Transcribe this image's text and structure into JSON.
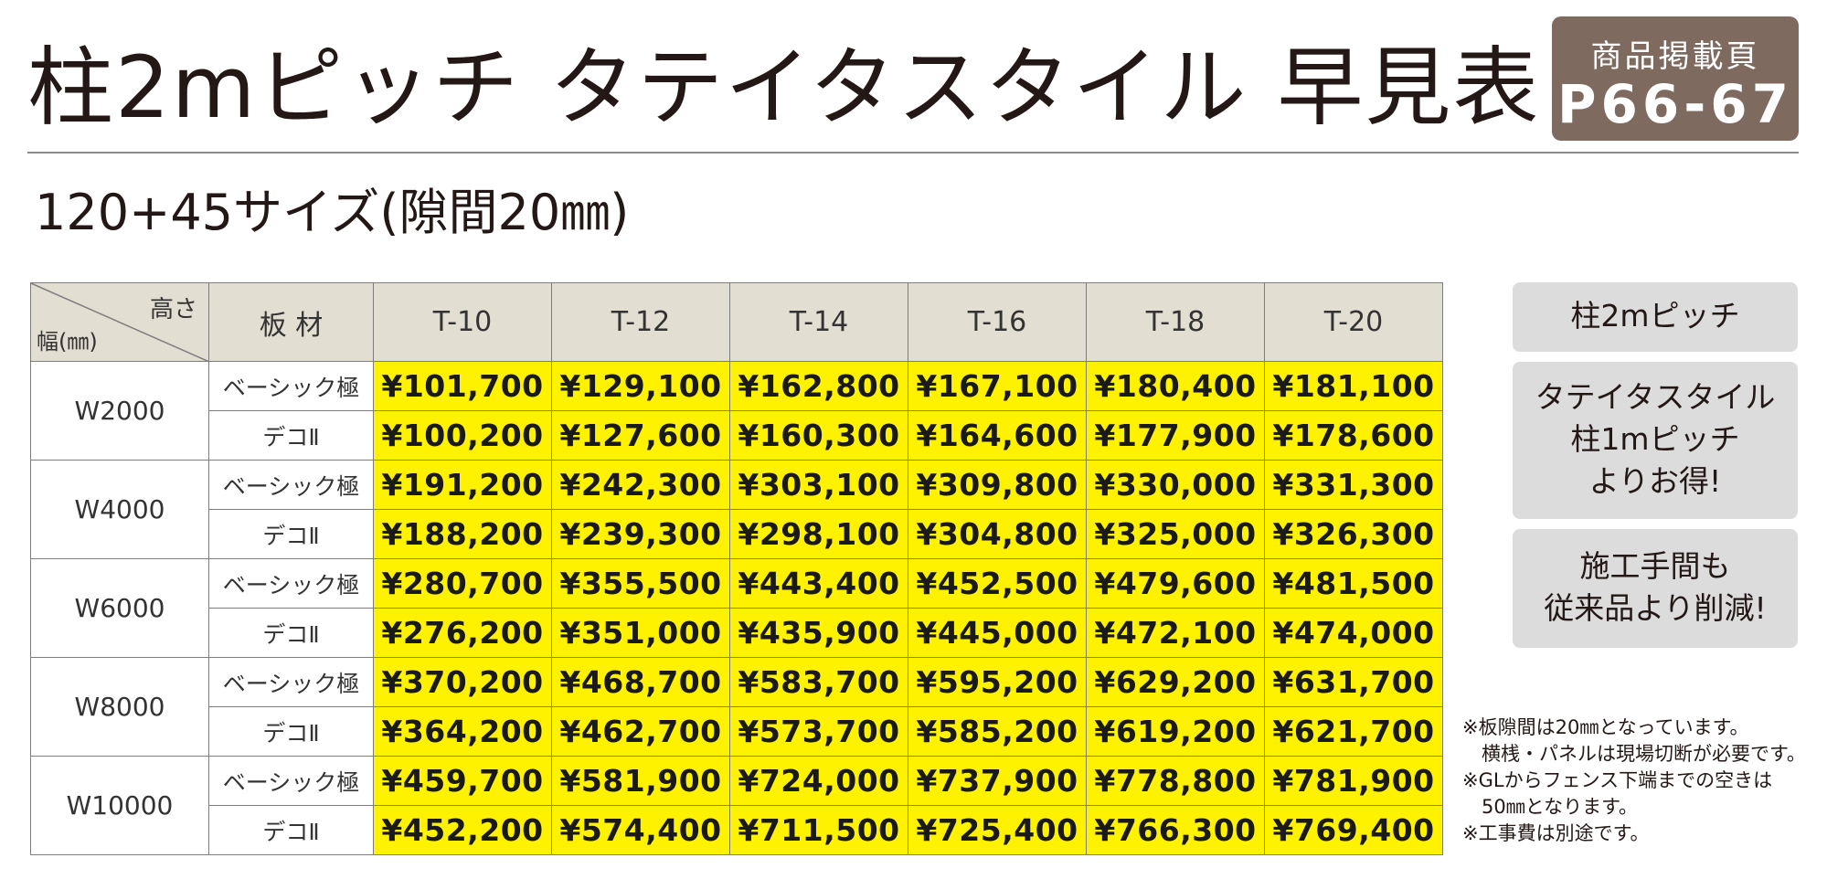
{
  "header": {
    "title": "柱2mピッチ タテイタスタイル 早見表",
    "page_badge": {
      "label": "商品掲載頁",
      "pages": "P66-67"
    },
    "subtitle": "120+45サイズ(隙間20㎜)"
  },
  "table": {
    "corner_top": "高さ",
    "corner_bottom": "幅(㎜)",
    "material_header": "板 材",
    "columns": [
      "T-10",
      "T-12",
      "T-14",
      "T-16",
      "T-18",
      "T-20"
    ],
    "groups": [
      {
        "width": "W2000",
        "rows": [
          {
            "material": "ベーシック極",
            "prices": [
              "¥101,700",
              "¥129,100",
              "¥162,800",
              "¥167,100",
              "¥180,400",
              "¥181,100"
            ]
          },
          {
            "material": "デコⅡ",
            "prices": [
              "¥100,200",
              "¥127,600",
              "¥160,300",
              "¥164,600",
              "¥177,900",
              "¥178,600"
            ]
          }
        ]
      },
      {
        "width": "W4000",
        "rows": [
          {
            "material": "ベーシック極",
            "prices": [
              "¥191,200",
              "¥242,300",
              "¥303,100",
              "¥309,800",
              "¥330,000",
              "¥331,300"
            ]
          },
          {
            "material": "デコⅡ",
            "prices": [
              "¥188,200",
              "¥239,300",
              "¥298,100",
              "¥304,800",
              "¥325,000",
              "¥326,300"
            ]
          }
        ]
      },
      {
        "width": "W6000",
        "rows": [
          {
            "material": "ベーシック極",
            "prices": [
              "¥280,700",
              "¥355,500",
              "¥443,400",
              "¥452,500",
              "¥479,600",
              "¥481,500"
            ]
          },
          {
            "material": "デコⅡ",
            "prices": [
              "¥276,200",
              "¥351,000",
              "¥435,900",
              "¥445,000",
              "¥472,100",
              "¥474,000"
            ]
          }
        ]
      },
      {
        "width": "W8000",
        "rows": [
          {
            "material": "ベーシック極",
            "prices": [
              "¥370,200",
              "¥468,700",
              "¥583,700",
              "¥595,200",
              "¥629,200",
              "¥631,700"
            ]
          },
          {
            "material": "デコⅡ",
            "prices": [
              "¥364,200",
              "¥462,700",
              "¥573,700",
              "¥585,200",
              "¥619,200",
              "¥621,700"
            ]
          }
        ]
      },
      {
        "width": "W10000",
        "rows": [
          {
            "material": "ベーシック極",
            "prices": [
              "¥459,700",
              "¥581,900",
              "¥724,000",
              "¥737,900",
              "¥778,800",
              "¥781,900"
            ]
          },
          {
            "material": "デコⅡ",
            "prices": [
              "¥452,200",
              "¥574,400",
              "¥711,500",
              "¥725,400",
              "¥766,300",
              "¥769,400"
            ]
          }
        ]
      }
    ]
  },
  "side_boxes": [
    {
      "lines": [
        "柱2mピッチ"
      ]
    },
    {
      "lines": [
        "タテイタスタイル",
        "柱1mピッチ",
        "よりお得!"
      ]
    },
    {
      "lines": [
        "施工手間も",
        "従来品より削減!"
      ]
    }
  ],
  "notes": [
    "※板隙間は20㎜となっています。",
    "横桟・パネルは現場切断が必要です。",
    "※GLからフェンス下端までの空きは",
    "50㎜となります。",
    "※工事費は別途です。"
  ],
  "colors": {
    "price_highlight": "#fff200",
    "header_bg": "#e3ded2",
    "badge_bg": "#7f6a5f",
    "side_box_bg": "#dcdcdc"
  }
}
